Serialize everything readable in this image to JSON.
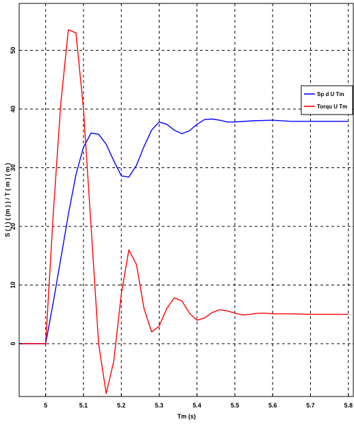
{
  "chart_data": {
    "type": "line",
    "title": "",
    "xlabel": "Tm (s)",
    "ylabel": "S ( l ) ( (m ) ) / T ( m ) ( m )",
    "xlim": [
      5.0,
      5.8
    ],
    "ylim": [
      -9,
      58
    ],
    "x_ticks": [
      5.0,
      5.1,
      5.2,
      5.3,
      5.4,
      5.5,
      5.6,
      5.7,
      5.8
    ],
    "x_tick_labels": [
      "5",
      "5.1",
      "5.2",
      "5.3",
      "5.4",
      "5.5",
      "5.6",
      "5.7",
      "5.8"
    ],
    "y_ticks": [
      0,
      10,
      20,
      30,
      40,
      50
    ],
    "y_tick_labels": [
      "0",
      "10",
      "20",
      "30",
      "40",
      "50"
    ],
    "grid": true,
    "legend_position": "right",
    "series": [
      {
        "name": "Sp d U Tm",
        "color": "#0000ff",
        "x": [
          4.93,
          5.0,
          5.02,
          5.04,
          5.06,
          5.08,
          5.1,
          5.12,
          5.14,
          5.16,
          5.18,
          5.2,
          5.22,
          5.24,
          5.26,
          5.28,
          5.3,
          5.32,
          5.34,
          5.36,
          5.38,
          5.4,
          5.42,
          5.44,
          5.46,
          5.48,
          5.5,
          5.55,
          5.6,
          5.65,
          5.7,
          5.75,
          5.8
        ],
        "values": [
          0,
          0,
          7,
          14.5,
          22,
          28.8,
          33.5,
          35.9,
          35.7,
          34.0,
          31.2,
          28.6,
          28.4,
          30.4,
          33.6,
          36.4,
          37.8,
          37.4,
          36.4,
          35.8,
          36.3,
          37.4,
          38.2,
          38.3,
          38.1,
          37.8,
          37.8,
          38.0,
          38.1,
          37.9,
          37.9,
          37.9,
          37.9
        ]
      },
      {
        "name": "Torqu U Tm",
        "color": "#ff0000",
        "x": [
          4.93,
          5.0,
          5.02,
          5.04,
          5.06,
          5.08,
          5.1,
          5.12,
          5.14,
          5.16,
          5.18,
          5.2,
          5.22,
          5.24,
          5.26,
          5.28,
          5.3,
          5.32,
          5.34,
          5.36,
          5.38,
          5.4,
          5.42,
          5.44,
          5.46,
          5.48,
          5.5,
          5.52,
          5.54,
          5.56,
          5.58,
          5.6,
          5.65,
          5.7,
          5.75,
          5.8
        ],
        "values": [
          0,
          0,
          22,
          41,
          53.5,
          53,
          40,
          20,
          0,
          -8.5,
          -3,
          8.5,
          16,
          13.5,
          6,
          2,
          3,
          6,
          7.8,
          7.3,
          5.2,
          4,
          4.4,
          5.3,
          5.8,
          5.6,
          5.2,
          4.9,
          5.0,
          5.2,
          5.2,
          5.1,
          5.1,
          5.0,
          5.0,
          5.0
        ]
      }
    ]
  }
}
